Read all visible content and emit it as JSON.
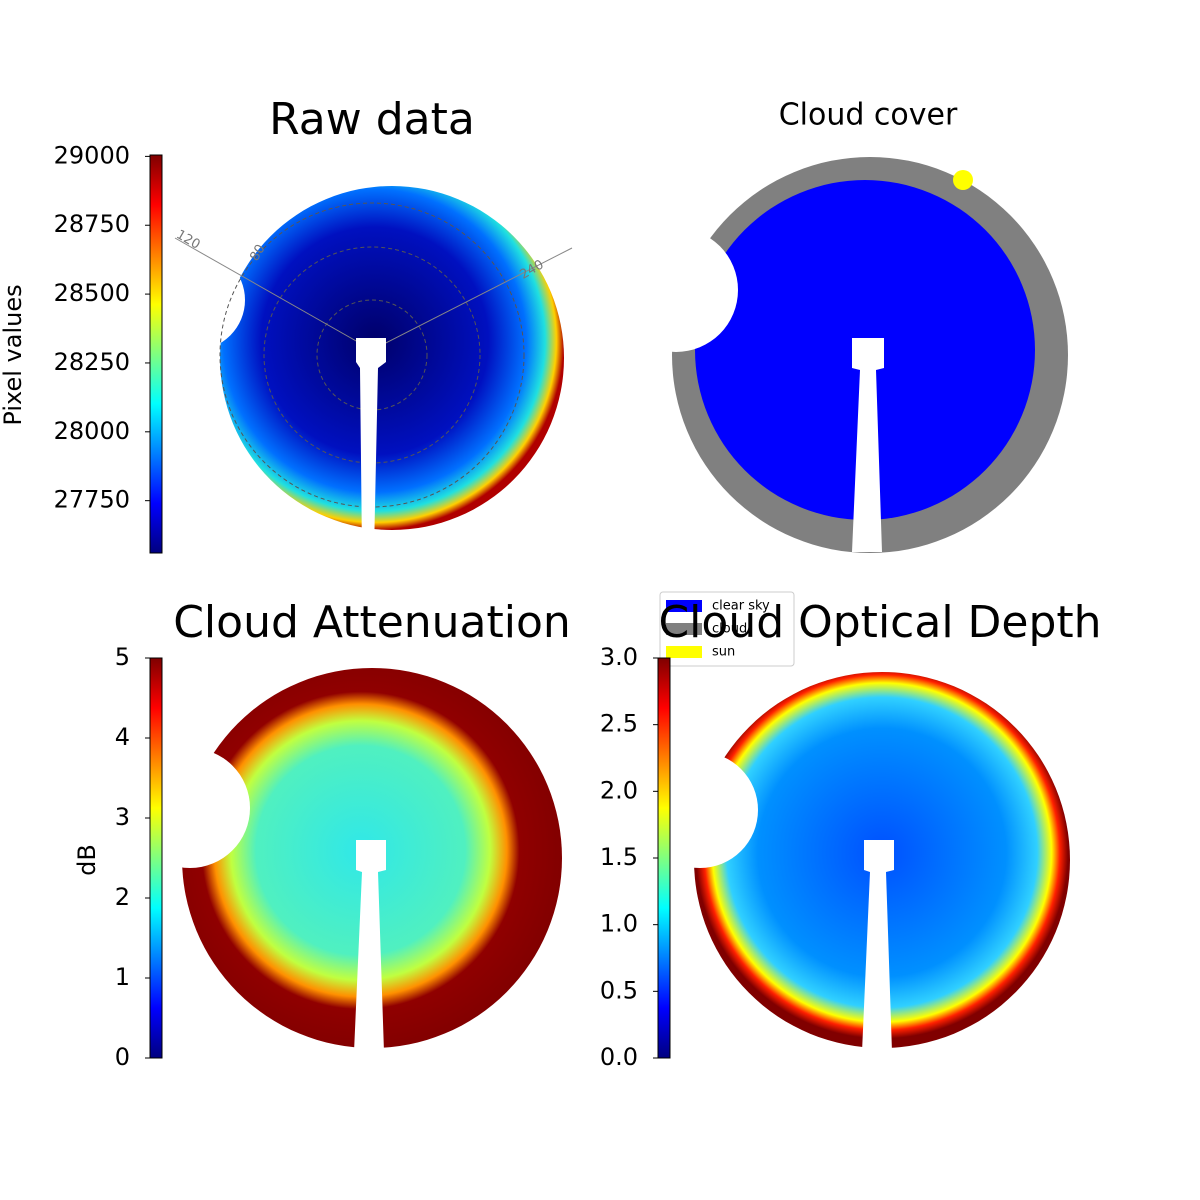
{
  "chart_data": [
    {
      "type": "image",
      "title": "Raw data",
      "colorbar": {
        "label": "Pixel values",
        "colormap": "jet",
        "ylim": [
          27560,
          29005
        ],
        "yticks": [
          27750,
          28000,
          28250,
          28500,
          28750,
          29000
        ]
      },
      "annotations": [
        "120",
        "80",
        "240"
      ]
    },
    {
      "type": "image",
      "title": "Cloud cover",
      "series": [
        {
          "name": "clear sky",
          "color": "#0000ff"
        },
        {
          "name": "cloud",
          "color": "#808080"
        },
        {
          "name": "sun",
          "color": "#ffff00"
        }
      ]
    },
    {
      "type": "image",
      "title": "Cloud Attenuation",
      "colorbar": {
        "label": "dB",
        "colormap": "jet",
        "ylim": [
          0,
          5
        ],
        "yticks": [
          0,
          1,
          2,
          3,
          4,
          5
        ]
      }
    },
    {
      "type": "image",
      "title": "Cloud Optical Depth",
      "colorbar": {
        "colormap": "jet",
        "ylim": [
          0,
          3
        ],
        "yticks": [
          {
            "value": 0,
            "label": "0.0"
          },
          {
            "value": 0.5,
            "label": "0.5"
          },
          {
            "value": 1,
            "label": "1.0"
          },
          {
            "value": 1.5,
            "label": "1.5"
          },
          {
            "value": 2,
            "label": "2.0"
          },
          {
            "value": 2.5,
            "label": "2.5"
          },
          {
            "value": 3,
            "label": "3.0"
          }
        ]
      }
    }
  ]
}
